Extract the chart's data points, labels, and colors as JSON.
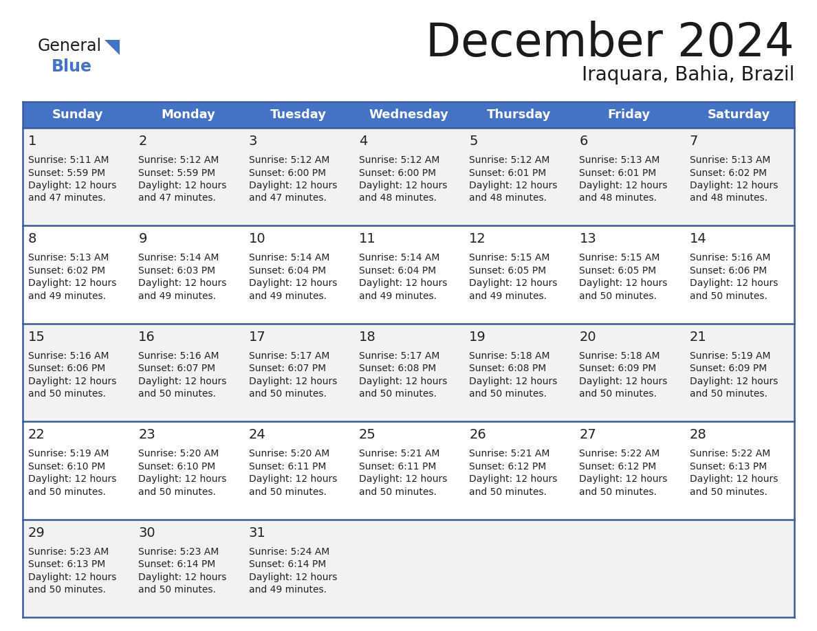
{
  "title": "December 2024",
  "subtitle": "Iraquara, Bahia, Brazil",
  "header_color": "#4472C4",
  "header_text_color": "#FFFFFF",
  "days_of_week": [
    "Sunday",
    "Monday",
    "Tuesday",
    "Wednesday",
    "Thursday",
    "Friday",
    "Saturday"
  ],
  "row_bg_even": "#F2F2F2",
  "row_bg_odd": "#FFFFFF",
  "border_color": "#3A5A9B",
  "text_color": "#222222",
  "calendar": [
    [
      {
        "day": 1,
        "sunrise": "5:11 AM",
        "sunset": "5:59 PM",
        "daylight_hours": 12,
        "daylight_minutes": 47
      },
      {
        "day": 2,
        "sunrise": "5:12 AM",
        "sunset": "5:59 PM",
        "daylight_hours": 12,
        "daylight_minutes": 47
      },
      {
        "day": 3,
        "sunrise": "5:12 AM",
        "sunset": "6:00 PM",
        "daylight_hours": 12,
        "daylight_minutes": 47
      },
      {
        "day": 4,
        "sunrise": "5:12 AM",
        "sunset": "6:00 PM",
        "daylight_hours": 12,
        "daylight_minutes": 48
      },
      {
        "day": 5,
        "sunrise": "5:12 AM",
        "sunset": "6:01 PM",
        "daylight_hours": 12,
        "daylight_minutes": 48
      },
      {
        "day": 6,
        "sunrise": "5:13 AM",
        "sunset": "6:01 PM",
        "daylight_hours": 12,
        "daylight_minutes": 48
      },
      {
        "day": 7,
        "sunrise": "5:13 AM",
        "sunset": "6:02 PM",
        "daylight_hours": 12,
        "daylight_minutes": 48
      }
    ],
    [
      {
        "day": 8,
        "sunrise": "5:13 AM",
        "sunset": "6:02 PM",
        "daylight_hours": 12,
        "daylight_minutes": 49
      },
      {
        "day": 9,
        "sunrise": "5:14 AM",
        "sunset": "6:03 PM",
        "daylight_hours": 12,
        "daylight_minutes": 49
      },
      {
        "day": 10,
        "sunrise": "5:14 AM",
        "sunset": "6:04 PM",
        "daylight_hours": 12,
        "daylight_minutes": 49
      },
      {
        "day": 11,
        "sunrise": "5:14 AM",
        "sunset": "6:04 PM",
        "daylight_hours": 12,
        "daylight_minutes": 49
      },
      {
        "day": 12,
        "sunrise": "5:15 AM",
        "sunset": "6:05 PM",
        "daylight_hours": 12,
        "daylight_minutes": 49
      },
      {
        "day": 13,
        "sunrise": "5:15 AM",
        "sunset": "6:05 PM",
        "daylight_hours": 12,
        "daylight_minutes": 50
      },
      {
        "day": 14,
        "sunrise": "5:16 AM",
        "sunset": "6:06 PM",
        "daylight_hours": 12,
        "daylight_minutes": 50
      }
    ],
    [
      {
        "day": 15,
        "sunrise": "5:16 AM",
        "sunset": "6:06 PM",
        "daylight_hours": 12,
        "daylight_minutes": 50
      },
      {
        "day": 16,
        "sunrise": "5:16 AM",
        "sunset": "6:07 PM",
        "daylight_hours": 12,
        "daylight_minutes": 50
      },
      {
        "day": 17,
        "sunrise": "5:17 AM",
        "sunset": "6:07 PM",
        "daylight_hours": 12,
        "daylight_minutes": 50
      },
      {
        "day": 18,
        "sunrise": "5:17 AM",
        "sunset": "6:08 PM",
        "daylight_hours": 12,
        "daylight_minutes": 50
      },
      {
        "day": 19,
        "sunrise": "5:18 AM",
        "sunset": "6:08 PM",
        "daylight_hours": 12,
        "daylight_minutes": 50
      },
      {
        "day": 20,
        "sunrise": "5:18 AM",
        "sunset": "6:09 PM",
        "daylight_hours": 12,
        "daylight_minutes": 50
      },
      {
        "day": 21,
        "sunrise": "5:19 AM",
        "sunset": "6:09 PM",
        "daylight_hours": 12,
        "daylight_minutes": 50
      }
    ],
    [
      {
        "day": 22,
        "sunrise": "5:19 AM",
        "sunset": "6:10 PM",
        "daylight_hours": 12,
        "daylight_minutes": 50
      },
      {
        "day": 23,
        "sunrise": "5:20 AM",
        "sunset": "6:10 PM",
        "daylight_hours": 12,
        "daylight_minutes": 50
      },
      {
        "day": 24,
        "sunrise": "5:20 AM",
        "sunset": "6:11 PM",
        "daylight_hours": 12,
        "daylight_minutes": 50
      },
      {
        "day": 25,
        "sunrise": "5:21 AM",
        "sunset": "6:11 PM",
        "daylight_hours": 12,
        "daylight_minutes": 50
      },
      {
        "day": 26,
        "sunrise": "5:21 AM",
        "sunset": "6:12 PM",
        "daylight_hours": 12,
        "daylight_minutes": 50
      },
      {
        "day": 27,
        "sunrise": "5:22 AM",
        "sunset": "6:12 PM",
        "daylight_hours": 12,
        "daylight_minutes": 50
      },
      {
        "day": 28,
        "sunrise": "5:22 AM",
        "sunset": "6:13 PM",
        "daylight_hours": 12,
        "daylight_minutes": 50
      }
    ],
    [
      {
        "day": 29,
        "sunrise": "5:23 AM",
        "sunset": "6:13 PM",
        "daylight_hours": 12,
        "daylight_minutes": 50
      },
      {
        "day": 30,
        "sunrise": "5:23 AM",
        "sunset": "6:14 PM",
        "daylight_hours": 12,
        "daylight_minutes": 50
      },
      {
        "day": 31,
        "sunrise": "5:24 AM",
        "sunset": "6:14 PM",
        "daylight_hours": 12,
        "daylight_minutes": 49
      },
      null,
      null,
      null,
      null
    ]
  ]
}
